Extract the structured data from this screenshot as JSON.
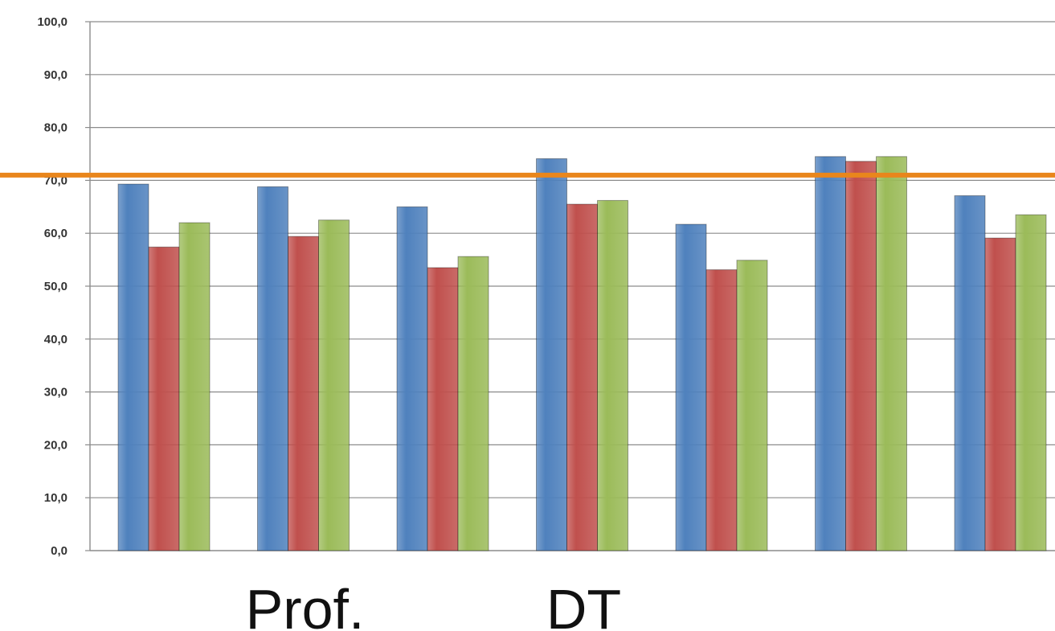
{
  "chart_data": {
    "type": "bar",
    "title": "",
    "xlabel": "",
    "ylabel": "",
    "ylim": [
      0,
      100
    ],
    "yticks": [
      "0,0",
      "10,0",
      "20,0",
      "30,0",
      "40,0",
      "50,0",
      "60,0",
      "70,0",
      "80,0",
      "90,0",
      "100,0"
    ],
    "grid": true,
    "legend": "none",
    "categories": [
      "",
      "Prof.",
      "",
      "DT",
      "",
      "",
      ""
    ],
    "category_labels": [
      {
        "text": "Prof.",
        "group": 1.5
      },
      {
        "text": "DT",
        "group": 3.5
      }
    ],
    "series": [
      {
        "color": "#4f81bd",
        "values": [
          69.3,
          68.8,
          65.0,
          74.1,
          61.7,
          74.5,
          67.1
        ]
      },
      {
        "color": "#c0504d",
        "values": [
          57.4,
          59.4,
          53.5,
          65.5,
          53.1,
          73.6,
          59.1
        ]
      },
      {
        "color": "#9bbb59",
        "values": [
          62.0,
          62.5,
          55.6,
          66.2,
          54.9,
          74.5,
          63.5
        ]
      }
    ],
    "reference_line": {
      "value": 71.0,
      "color": "#e9861c"
    }
  }
}
